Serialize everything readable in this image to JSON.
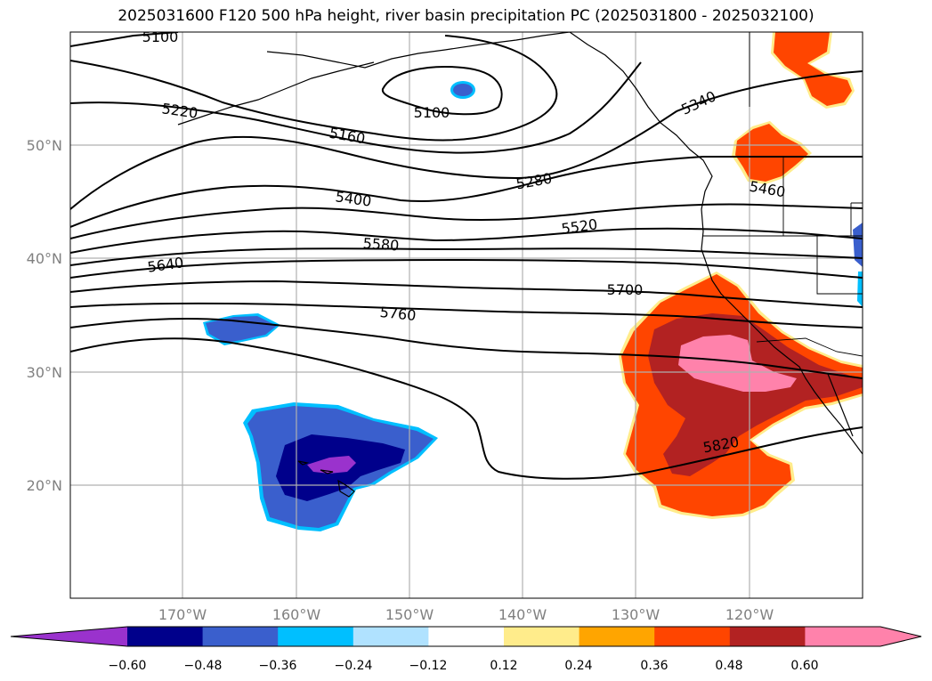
{
  "title": "2025031600 F120 500 hPa height, river basin precipitation PC (2025031800 - 2025032100)",
  "lat_labels": [
    "50°N",
    "40°N",
    "30°N",
    "20°N"
  ],
  "lon_labels": [
    "170°W",
    "160°W",
    "150°W",
    "140°W",
    "130°W",
    "120°W"
  ],
  "contour_labels": [
    "5100",
    "5100",
    "5220",
    "5160",
    "5340",
    "5280",
    "5400",
    "5460",
    "5520",
    "5580",
    "5640",
    "5700",
    "5760",
    "5820"
  ],
  "colorbar": {
    "ticks": [
      "−0.60",
      "−0.48",
      "−0.36",
      "−0.24",
      "−0.12",
      "0.12",
      "0.24",
      "0.36",
      "0.48",
      "0.60"
    ],
    "colors": [
      "#9a32cd",
      "#00008b",
      "#3a5fcd",
      "#00bfff",
      "#b0e2ff",
      "#ffffff",
      "#ffec8b",
      "#ffa500",
      "#ff4500",
      "#b22222",
      "#ff82ab",
      "#ff82ab"
    ]
  },
  "colors": {
    "negative_deep": "#00008b",
    "negative_mid": "#3a5fcd",
    "negative_light": "#00bfff",
    "negative_extreme": "#9a32cd",
    "positive_orange": "#ff4500",
    "positive_red": "#b22222",
    "positive_pink": "#ff82ab",
    "grid": "#b0b0b0"
  }
}
